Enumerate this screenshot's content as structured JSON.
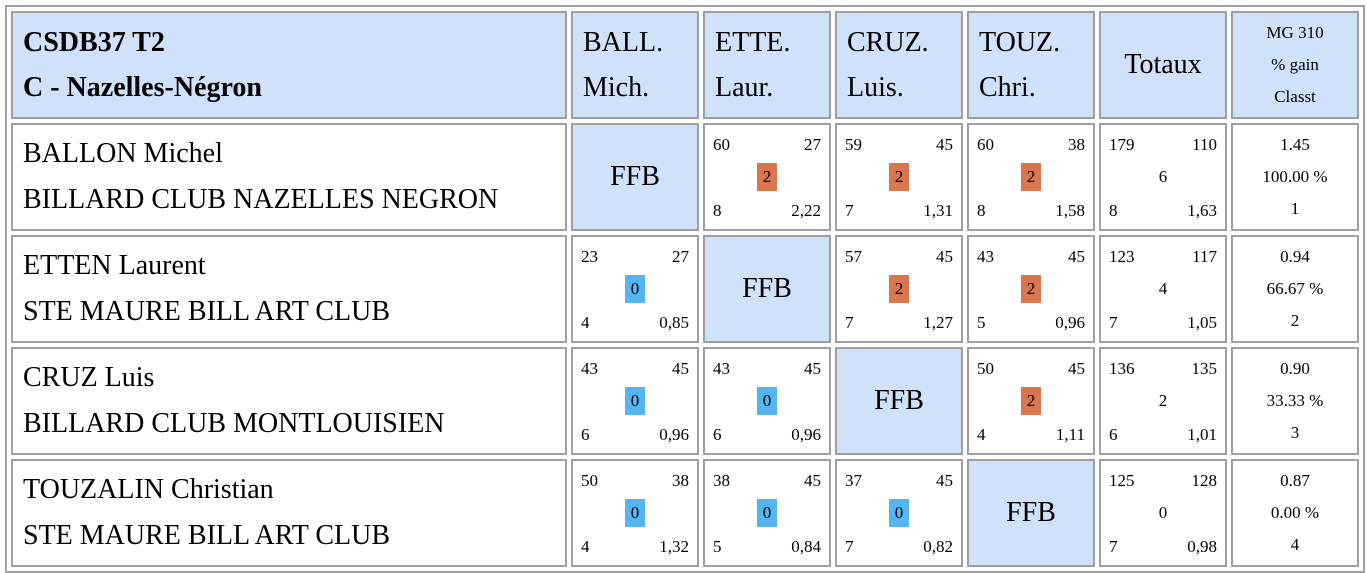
{
  "header": {
    "title_line1": "CSDB37 T2",
    "title_line2": "C - Nazelles-Négron",
    "columns": [
      {
        "line1": "BALL.",
        "line2": "Mich."
      },
      {
        "line1": "ETTE.",
        "line2": "Laur."
      },
      {
        "line1": "CRUZ.",
        "line2": "Luis."
      },
      {
        "line1": "TOUZ.",
        "line2": "Chri."
      }
    ],
    "totals_label": "Totaux",
    "mg_label": "MG 310",
    "gain_label": "% gain",
    "rank_label": "Classt"
  },
  "ffb_label": "FFB",
  "colors": {
    "header_bg": "#cfe2f9",
    "win_badge": "#d8774b",
    "loss_badge": "#54b5f0",
    "border": "#a0a0a0"
  },
  "players": [
    {
      "name": "BALLON Michel",
      "club": "BILLARD CLUB NAZELLES NEGRON",
      "matches": [
        null,
        {
          "points_for": "60",
          "points_against": "27",
          "match_points": "2",
          "innings": "8",
          "average": "2,22"
        },
        {
          "points_for": "59",
          "points_against": "45",
          "match_points": "2",
          "innings": "7",
          "average": "1,31"
        },
        {
          "points_for": "60",
          "points_against": "38",
          "match_points": "2",
          "innings": "8",
          "average": "1,58"
        }
      ],
      "totals": {
        "points_for": "179",
        "points_against": "110",
        "match_points": "6",
        "innings": "8",
        "average": "1,63"
      },
      "mg": "1.45",
      "gain": "100.00 %",
      "rank": "1"
    },
    {
      "name": "ETTEN Laurent",
      "club": "STE MAURE BILL ART CLUB",
      "matches": [
        {
          "points_for": "23",
          "points_against": "27",
          "match_points": "0",
          "innings": "4",
          "average": "0,85"
        },
        null,
        {
          "points_for": "57",
          "points_against": "45",
          "match_points": "2",
          "innings": "7",
          "average": "1,27"
        },
        {
          "points_for": "43",
          "points_against": "45",
          "match_points": "2",
          "innings": "5",
          "average": "0,96"
        }
      ],
      "totals": {
        "points_for": "123",
        "points_against": "117",
        "match_points": "4",
        "innings": "7",
        "average": "1,05"
      },
      "mg": "0.94",
      "gain": "66.67 %",
      "rank": "2"
    },
    {
      "name": "CRUZ Luis",
      "club": "BILLARD CLUB MONTLOUISIEN",
      "matches": [
        {
          "points_for": "43",
          "points_against": "45",
          "match_points": "0",
          "innings": "6",
          "average": "0,96"
        },
        {
          "points_for": "43",
          "points_against": "45",
          "match_points": "0",
          "innings": "6",
          "average": "0,96"
        },
        null,
        {
          "points_for": "50",
          "points_against": "45",
          "match_points": "2",
          "innings": "4",
          "average": "1,11"
        }
      ],
      "totals": {
        "points_for": "136",
        "points_against": "135",
        "match_points": "2",
        "innings": "6",
        "average": "1,01"
      },
      "mg": "0.90",
      "gain": "33.33 %",
      "rank": "3"
    },
    {
      "name": "TOUZALIN Christian",
      "club": "STE MAURE BILL ART CLUB",
      "matches": [
        {
          "points_for": "50",
          "points_against": "38",
          "match_points": "0",
          "innings": "4",
          "average": "1,32"
        },
        {
          "points_for": "38",
          "points_against": "45",
          "match_points": "0",
          "innings": "5",
          "average": "0,84"
        },
        {
          "points_for": "37",
          "points_against": "45",
          "match_points": "0",
          "innings": "7",
          "average": "0,82"
        },
        null
      ],
      "totals": {
        "points_for": "125",
        "points_against": "128",
        "match_points": "0",
        "innings": "7",
        "average": "0,98"
      },
      "mg": "0.87",
      "gain": "0.00 %",
      "rank": "4"
    }
  ]
}
